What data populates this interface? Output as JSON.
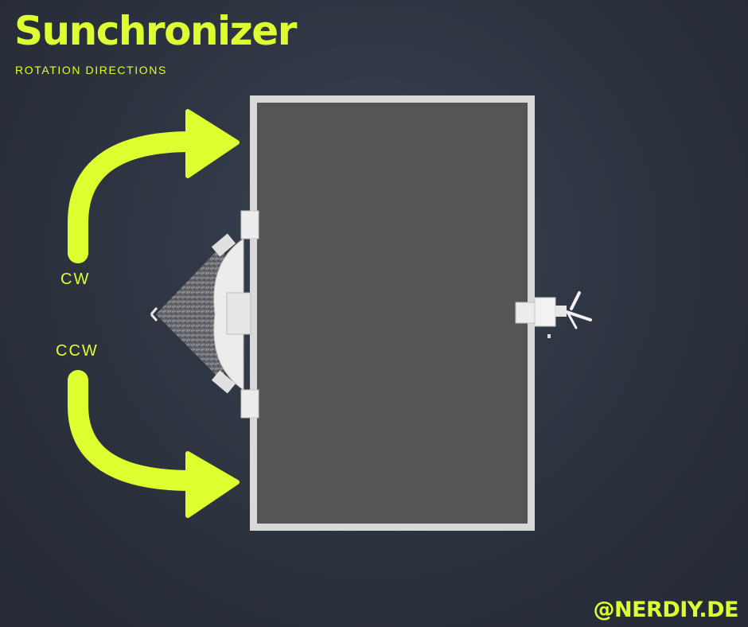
{
  "header": {
    "title": "Sunchronizer",
    "subtitle": "ROTATION DIRECTIONS"
  },
  "labels": {
    "cw": "CW",
    "ccw": "CCW"
  },
  "footer": {
    "handle": "@NERDIY.DE"
  },
  "colors": {
    "accent": "#ddff2f",
    "background": "#2e3440",
    "panel": "#555555",
    "panel_border": "#d9d9d9"
  }
}
